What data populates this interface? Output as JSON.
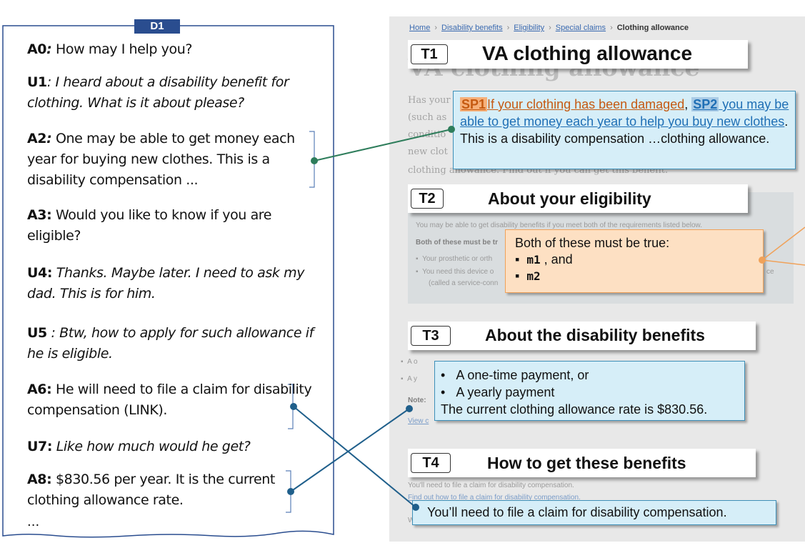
{
  "dialogue": {
    "label": "D1",
    "turns": [
      {
        "id": "A0",
        "sep": ":",
        "text": " How may I help you?",
        "speaker": "agent"
      },
      {
        "id": "U1",
        "sep": ":",
        "text": " I heard about a disability benefit for clothing. What is it about please?",
        "speaker": "user"
      },
      {
        "id": "A2",
        "sep": ":",
        "text": " One may be able to get money each year for buying new clothes. This is a disability compensation ...",
        "speaker": "agent"
      },
      {
        "id": "A3",
        "sep": ":",
        "text": " Would you like to know if you are eligible?",
        "speaker": "agent"
      },
      {
        "id": "U4",
        "sep": ":",
        "text": " Thanks. Maybe later. I need to ask my dad. This is for him.",
        "speaker": "user"
      },
      {
        "id": "U5",
        "sep": " :",
        "text": " Btw, how to apply for such allowance if he is eligible.",
        "speaker": "user"
      },
      {
        "id": "A6",
        "sep": ":",
        "text": " He will need to file a claim for disability compensation (LINK).",
        "speaker": "agent"
      },
      {
        "id": "U7",
        "sep": ":",
        "text": " Like how much would he get?",
        "speaker": "user"
      },
      {
        "id": "A8",
        "sep": ":",
        "text": " $830.56 per year. It is the current clothing allowance rate.",
        "speaker": "agent"
      }
    ],
    "ellipsis": "..."
  },
  "webpage": {
    "breadcrumb": {
      "home": "Home",
      "b1": "Disability benefits",
      "b2": "Eligibility",
      "b3": "Special claims",
      "current": "Clothing allowance",
      "sep": "›"
    },
    "ghost_title": "VA clothing allowance",
    "ghost_intro": [
      "Has your",
      "(such as",
      "conditio",
      "new clot",
      "clothing"
    ],
    "ghost_intro_tail": "allowance. Find out if you can get this benefit.",
    "ghost_elig_line": "You may be able to get disability benefits if you meet both of the requirements listed below.",
    "ghost_elig_bold": "Both of these must be tr",
    "ghost_elig_b1": "Your prosthetic or orth",
    "ghost_elig_b2": "You need this device o",
    "ghost_elig_b2_tail": "ce",
    "ghost_elig_b3": "(called a service-conn",
    "ghost_ben_b1": "A o",
    "ghost_ben_b2": "A y",
    "ghost_note": "Note:",
    "ghost_view": "View c",
    "ghost_file1": "You'll need to file a claim for disability compensation.",
    "ghost_file2": "Find out how to file a claim for disability compensation.",
    "ghost_w": "W"
  },
  "sections": [
    {
      "tag": "T1",
      "title": "VA clothing allowance"
    },
    {
      "tag": "T2",
      "title": "About your eligibility"
    },
    {
      "tag": "T3",
      "title": "About the disability benefits"
    },
    {
      "tag": "T4",
      "title": "How to get these benefits"
    }
  ],
  "callouts": {
    "t1": {
      "sp1_tag": "SP1",
      "sp1_text": "If your clothing has been damaged",
      "comma": ", ",
      "sp2_tag": "SP2",
      "sp2_text": " you may be able to get money each year to help you buy new clothes",
      "rest": ". This is a disability compensation …clothing allowance."
    },
    "t2": {
      "intro": "Both of these must be true:",
      "m1": "m1",
      "m1_tail": " , and",
      "m2": "m2"
    },
    "t3": {
      "b1": "A one-time payment, or",
      "b2": "A yearly payment",
      "rate": "The current clothing allowance rate is $830.56."
    },
    "t4": {
      "text": "You’ll need to file a claim for disability compensation."
    }
  },
  "colors": {
    "dialog_border": "#2a4d8f",
    "callout_blue": "#d6eef8",
    "callout_peach": "#fde0c3",
    "link_green": "#2e7d5b",
    "link_blue": "#1f5f8b",
    "link_orange": "#f0a25a"
  }
}
